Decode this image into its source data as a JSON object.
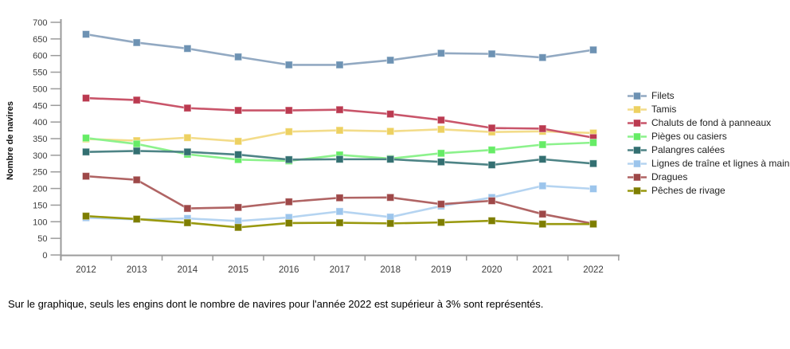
{
  "caption": {
    "text": "Sur le graphique, seuls les engins dont le nombre de navires pour l'année 2022 est supérieur à 3% sont représentés."
  },
  "chart_data": {
    "type": "line",
    "title": "",
    "xlabel": "",
    "ylabel": "Nombre de navires",
    "x": [
      "2012",
      "2013",
      "2014",
      "2015",
      "2016",
      "2017",
      "2018",
      "2019",
      "2020",
      "2021",
      "2022"
    ],
    "ylim": [
      0,
      700
    ],
    "ytick_step": 50,
    "grid": false,
    "legend_position": "right",
    "marker": "square",
    "axis_color": "#9b9b9b",
    "series": [
      {
        "name": "Filets",
        "line_color": "#92a9c2",
        "marker_color": "#6d92b3",
        "values": [
          664,
          639,
          621,
          596,
          572,
          572,
          586,
          607,
          605,
          594,
          617
        ]
      },
      {
        "name": "Tamis",
        "line_color": "#f3dc8a",
        "marker_color": "#edd161",
        "values": [
          349,
          344,
          353,
          342,
          371,
          375,
          372,
          378,
          370,
          372,
          367
        ]
      },
      {
        "name": "Chaluts de fond à panneaux",
        "line_color": "#c9556a",
        "marker_color": "#bb3a50",
        "values": [
          472,
          466,
          442,
          435,
          435,
          437,
          424,
          406,
          382,
          380,
          353
        ]
      },
      {
        "name": "Pièges ou casiers",
        "line_color": "#8cf28c",
        "marker_color": "#66ec66",
        "values": [
          352,
          334,
          303,
          287,
          283,
          301,
          290,
          306,
          316,
          332,
          338
        ]
      },
      {
        "name": "Palangres calées",
        "line_color": "#4e8486",
        "marker_color": "#336f71",
        "values": [
          310,
          313,
          310,
          302,
          287,
          288,
          288,
          280,
          271,
          288,
          275
        ]
      },
      {
        "name": "Lignes de traîne et lignes à main",
        "line_color": "#b5d4f1",
        "marker_color": "#9cc5ec",
        "values": [
          112,
          107,
          110,
          102,
          113,
          131,
          114,
          147,
          173,
          208,
          199
        ]
      },
      {
        "name": "Dragues",
        "line_color": "#b06464",
        "marker_color": "#9e4848",
        "values": [
          237,
          226,
          140,
          143,
          160,
          172,
          173,
          153,
          163,
          123,
          94
        ]
      },
      {
        "name": "Pêches de rivage",
        "line_color": "#99990f",
        "marker_color": "#7e7e00",
        "values": [
          117,
          108,
          97,
          83,
          96,
          97,
          95,
          98,
          103,
          93,
          93
        ]
      }
    ]
  }
}
